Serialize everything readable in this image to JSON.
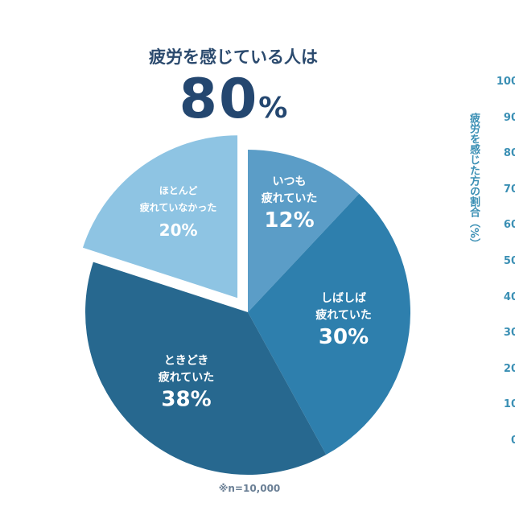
{
  "chart_data": {
    "type": "pie",
    "title": "疲労を感じている人は",
    "headline_value": "80",
    "headline_unit": "%",
    "slices": [
      {
        "line1": "いつも",
        "line2": "疲れていた",
        "value": 12,
        "label": "12%",
        "color": "#5b9dc7",
        "exploded": false
      },
      {
        "line1": "しばしば",
        "line2": "疲れていた",
        "value": 30,
        "label": "30%",
        "color": "#2e7fad",
        "exploded": false
      },
      {
        "line1": "ときどき",
        "line2": "疲れていた",
        "value": 38,
        "label": "38%",
        "color": "#27688f",
        "exploded": false
      },
      {
        "line1": "ほとんど",
        "line2": "疲れていなかった",
        "value": 20,
        "label": "20%",
        "color": "#8ec4e3",
        "exploded": true
      }
    ],
    "note": "※n=10,000",
    "side_axis": {
      "ylabel": "疲労を感じた方の割合（%）",
      "ticks": [
        "100",
        "90",
        "80",
        "70",
        "60",
        "50",
        "40",
        "30",
        "20",
        "10",
        "0"
      ],
      "ylim": [
        0,
        100
      ]
    }
  }
}
